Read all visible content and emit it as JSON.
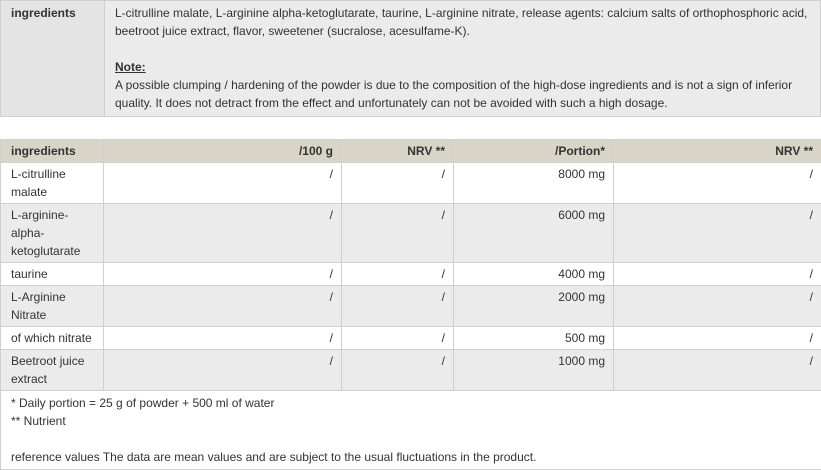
{
  "ingredients_box": {
    "label": "ingredients",
    "text": "L-citrulline malate, L-arginine alpha-ketoglutarate, taurine, L-arginine nitrate, release agents: calcium salts of orthophosphoric acid, beetroot juice extract, flavor, sweetener (sucralose, acesulfame-K).",
    "note_title": "Note:",
    "note_text": "A possible clumping / hardening of the powder is due to the composition of the high-dose ingredients and is not a sign of inferior quality. It does not detract from the effect and unfortunately can not be avoided with such a high dosage."
  },
  "nutrition_table": {
    "headers": [
      "ingredients",
      "/100 g",
      "NRV **",
      "/Portion*",
      "NRV **"
    ],
    "rows": [
      [
        "L-citrulline malate",
        "/",
        "/",
        "8000 mg",
        "/"
      ],
      [
        "L-arginine-alpha-ketoglutarate",
        "/",
        "/",
        "6000 mg",
        "/"
      ],
      [
        "taurine",
        "/",
        "/",
        "4000 mg",
        "/"
      ],
      [
        "L-Arginine Nitrate",
        "/",
        "/",
        "2000 mg",
        "/"
      ],
      [
        "of which nitrate",
        "/",
        "/",
        "500 mg",
        "/"
      ],
      [
        "Beetroot juice extract",
        "/",
        "/",
        "1000 mg",
        "/"
      ]
    ],
    "footnotes": [
      "* Daily portion = 25 g of powder + 500 ml of water",
      "** Nutrient",
      "reference values The data are mean values and are subject to the usual fluctuations in the product."
    ]
  }
}
